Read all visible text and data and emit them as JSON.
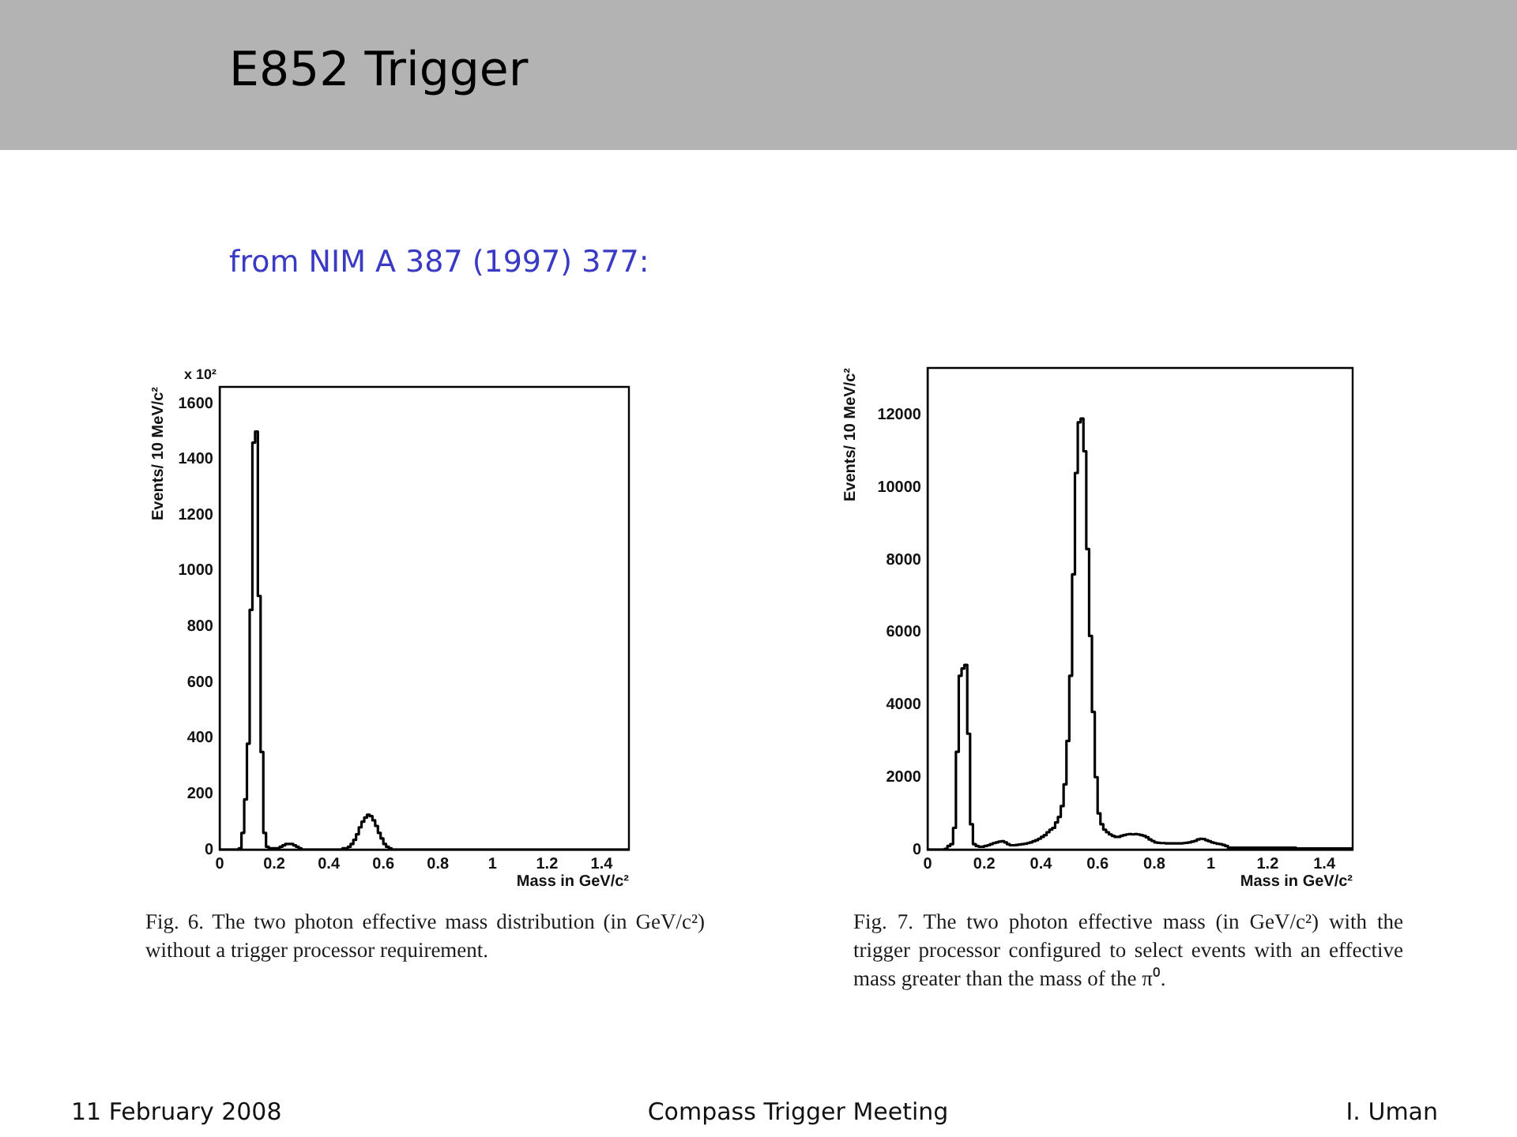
{
  "chart_data": [
    {
      "type": "histogram",
      "title": "E852 Trigger",
      "subtitle": "from NIM A 387 (1997) 377:",
      "xlabel": "Mass in GeV/c²",
      "ylabel": "Events/ 10 MeV/c²",
      "color": "#000000",
      "bins": [
        0,
        0.01,
        0.02,
        0.03,
        0.04,
        0.05,
        0.06,
        0.07,
        0.08,
        0.09,
        0.1,
        0.11,
        0.12,
        0.13,
        0.14,
        0.15,
        0.16,
        0.17,
        0.18,
        0.19,
        0.2,
        0.21,
        0.22,
        0.23,
        0.24,
        0.25,
        0.26,
        0.27,
        0.28,
        0.29,
        0.3,
        0.31,
        0.32,
        0.33,
        0.34,
        0.35,
        0.36,
        0.37,
        0.38,
        0.39,
        0.4,
        0.41,
        0.42,
        0.43,
        0.44,
        0.45,
        0.46,
        0.47,
        0.48,
        0.49,
        0.5,
        0.51,
        0.52,
        0.53,
        0.54,
        0.55,
        0.56,
        0.57,
        0.58,
        0.59,
        0.6,
        0.61,
        0.62,
        0.63,
        0.64,
        0.65,
        0.66,
        0.67,
        0.68,
        0.69,
        0.7,
        0.71,
        0.72,
        0.73,
        0.74,
        0.75,
        0.76,
        0.77,
        0.78,
        0.79,
        0.8,
        0.81,
        0.82,
        0.83,
        0.84,
        0.85,
        0.86,
        0.87,
        0.88,
        0.89,
        0.9,
        0.91,
        0.92,
        0.93,
        0.94,
        0.95,
        0.96,
        0.97,
        0.98,
        0.99,
        1,
        1.01,
        1.02,
        1.03,
        1.04,
        1.05,
        1.06,
        1.07,
        1.08,
        1.09,
        1.1,
        1.11,
        1.12,
        1.13,
        1.14,
        1.15,
        1.16,
        1.17,
        1.18,
        1.19,
        1.2,
        1.21,
        1.22,
        1.23,
        1.24,
        1.25,
        1.26,
        1.27,
        1.28,
        1.29,
        1.3,
        1.31,
        1.32,
        1.33,
        1.34,
        1.35,
        1.36,
        1.37,
        1.38,
        1.39,
        1.4,
        1.41,
        1.42,
        1.43,
        1.44,
        1.45,
        1.46,
        1.47,
        1.48,
        1.49,
        1.5
      ],
      "values": [
        0,
        0,
        0,
        0,
        0,
        0,
        0,
        5,
        60,
        180,
        380,
        860,
        1460,
        1500,
        910,
        350,
        60,
        10,
        5,
        5,
        5,
        5,
        10,
        15,
        20,
        20,
        20,
        15,
        10,
        5,
        0,
        0,
        0,
        0,
        0,
        0,
        0,
        0,
        0,
        0,
        0,
        0,
        0,
        0,
        0,
        5,
        5,
        10,
        20,
        35,
        55,
        80,
        100,
        115,
        125,
        120,
        105,
        85,
        60,
        40,
        20,
        10,
        5,
        0,
        0,
        0,
        0,
        0,
        0,
        0,
        0,
        0,
        0,
        0,
        0,
        0,
        0,
        0,
        0,
        0,
        0,
        0,
        0,
        0,
        0,
        0,
        0,
        0,
        0,
        0,
        0,
        0,
        0,
        0,
        0,
        0,
        0,
        0,
        0,
        0,
        0,
        0,
        0,
        0,
        0,
        0,
        0,
        0,
        0,
        0,
        0,
        0,
        0,
        0,
        0,
        0,
        0,
        0,
        0,
        0,
        0,
        0,
        0,
        0,
        0,
        0,
        0,
        0,
        0,
        0,
        0,
        0,
        0,
        0,
        0,
        0,
        0,
        0,
        0,
        0,
        0,
        0,
        0,
        0,
        0,
        0,
        0,
        0,
        0,
        0
      ],
      "xlim": [
        0,
        1.5
      ],
      "xticks": [
        0,
        0.2,
        0.4,
        0.6,
        0.8,
        1,
        1.2,
        1.4
      ],
      "ylim": [
        0,
        1660
      ],
      "yticks": [
        0,
        200,
        400,
        600,
        800,
        1000,
        1200,
        1400,
        1600
      ],
      "annotations": [
        "x 10²",
        "Fig. 6. The two photon effective mass distribution (in GeV/c²) without a trigger processor requirement."
      ]
    },
    {
      "type": "histogram",
      "xlabel": "Mass in GeV/c²",
      "ylabel": "Events/ 10 MeV/c²",
      "color": "#000000",
      "bins": [
        0,
        0.01,
        0.02,
        0.03,
        0.04,
        0.05,
        0.06,
        0.07,
        0.08,
        0.09,
        0.1,
        0.11,
        0.12,
        0.13,
        0.14,
        0.15,
        0.16,
        0.17,
        0.18,
        0.19,
        0.2,
        0.21,
        0.22,
        0.23,
        0.24,
        0.25,
        0.26,
        0.27,
        0.28,
        0.29,
        0.3,
        0.31,
        0.32,
        0.33,
        0.34,
        0.35,
        0.36,
        0.37,
        0.38,
        0.39,
        0.4,
        0.41,
        0.42,
        0.43,
        0.44,
        0.45,
        0.46,
        0.47,
        0.48,
        0.49,
        0.5,
        0.51,
        0.52,
        0.53,
        0.54,
        0.55,
        0.56,
        0.57,
        0.58,
        0.59,
        0.6,
        0.61,
        0.62,
        0.63,
        0.64,
        0.65,
        0.66,
        0.67,
        0.68,
        0.69,
        0.7,
        0.71,
        0.72,
        0.73,
        0.74,
        0.75,
        0.76,
        0.77,
        0.78,
        0.79,
        0.8,
        0.81,
        0.82,
        0.83,
        0.84,
        0.85,
        0.86,
        0.87,
        0.88,
        0.89,
        0.9,
        0.91,
        0.92,
        0.93,
        0.94,
        0.95,
        0.96,
        0.97,
        0.98,
        0.99,
        1,
        1.01,
        1.02,
        1.03,
        1.04,
        1.05,
        1.06,
        1.07,
        1.08,
        1.09,
        1.1,
        1.11,
        1.12,
        1.13,
        1.14,
        1.15,
        1.16,
        1.17,
        1.18,
        1.19,
        1.2,
        1.21,
        1.22,
        1.23,
        1.24,
        1.25,
        1.26,
        1.27,
        1.28,
        1.29,
        1.3,
        1.31,
        1.32,
        1.33,
        1.34,
        1.35,
        1.36,
        1.37,
        1.38,
        1.39,
        1.4,
        1.41,
        1.42,
        1.43,
        1.44,
        1.45,
        1.46,
        1.47,
        1.48,
        1.49,
        1.5
      ],
      "values": [
        0,
        0,
        0,
        0,
        0,
        0,
        20,
        100,
        150,
        600,
        2700,
        4800,
        5000,
        5100,
        3200,
        700,
        150,
        100,
        80,
        80,
        100,
        120,
        150,
        180,
        200,
        220,
        230,
        200,
        150,
        120,
        120,
        130,
        140,
        150,
        160,
        180,
        200,
        230,
        260,
        300,
        350,
        400,
        480,
        550,
        600,
        750,
        900,
        1200,
        1800,
        3000,
        4800,
        7600,
        10400,
        11800,
        11900,
        11000,
        8300,
        5900,
        3800,
        2000,
        1000,
        700,
        550,
        480,
        420,
        380,
        350,
        350,
        380,
        400,
        420,
        430,
        420,
        430,
        420,
        400,
        380,
        340,
        280,
        240,
        200,
        190,
        180,
        180,
        170,
        170,
        170,
        170,
        170,
        170,
        180,
        190,
        200,
        220,
        240,
        280,
        300,
        290,
        260,
        230,
        200,
        180,
        160,
        150,
        130,
        100,
        50,
        50,
        50,
        50,
        50,
        50,
        50,
        50,
        50,
        50,
        50,
        50,
        50,
        50,
        50,
        50,
        50,
        50,
        50,
        50,
        50,
        50,
        50,
        50,
        30,
        30,
        30,
        30,
        30,
        30,
        30,
        30,
        30,
        30,
        30,
        30,
        30,
        30,
        30,
        30,
        30,
        30,
        30,
        30
      ],
      "xlim": [
        0,
        1.5
      ],
      "xticks": [
        0,
        0.2,
        0.4,
        0.6,
        0.8,
        1,
        1.2,
        1.4
      ],
      "ylim": [
        0,
        13300
      ],
      "yticks": [
        0,
        2000,
        4000,
        6000,
        8000,
        10000,
        12000
      ],
      "annotations": [
        "Fig. 7. The two photon effective mass (in GeV/c²) with the trigger processor configured to select events with an effective mass greater than the mass of the π⁰.",
        "11 February 2008",
        "Compass Trigger Meeting",
        "I. Uman"
      ]
    }
  ]
}
